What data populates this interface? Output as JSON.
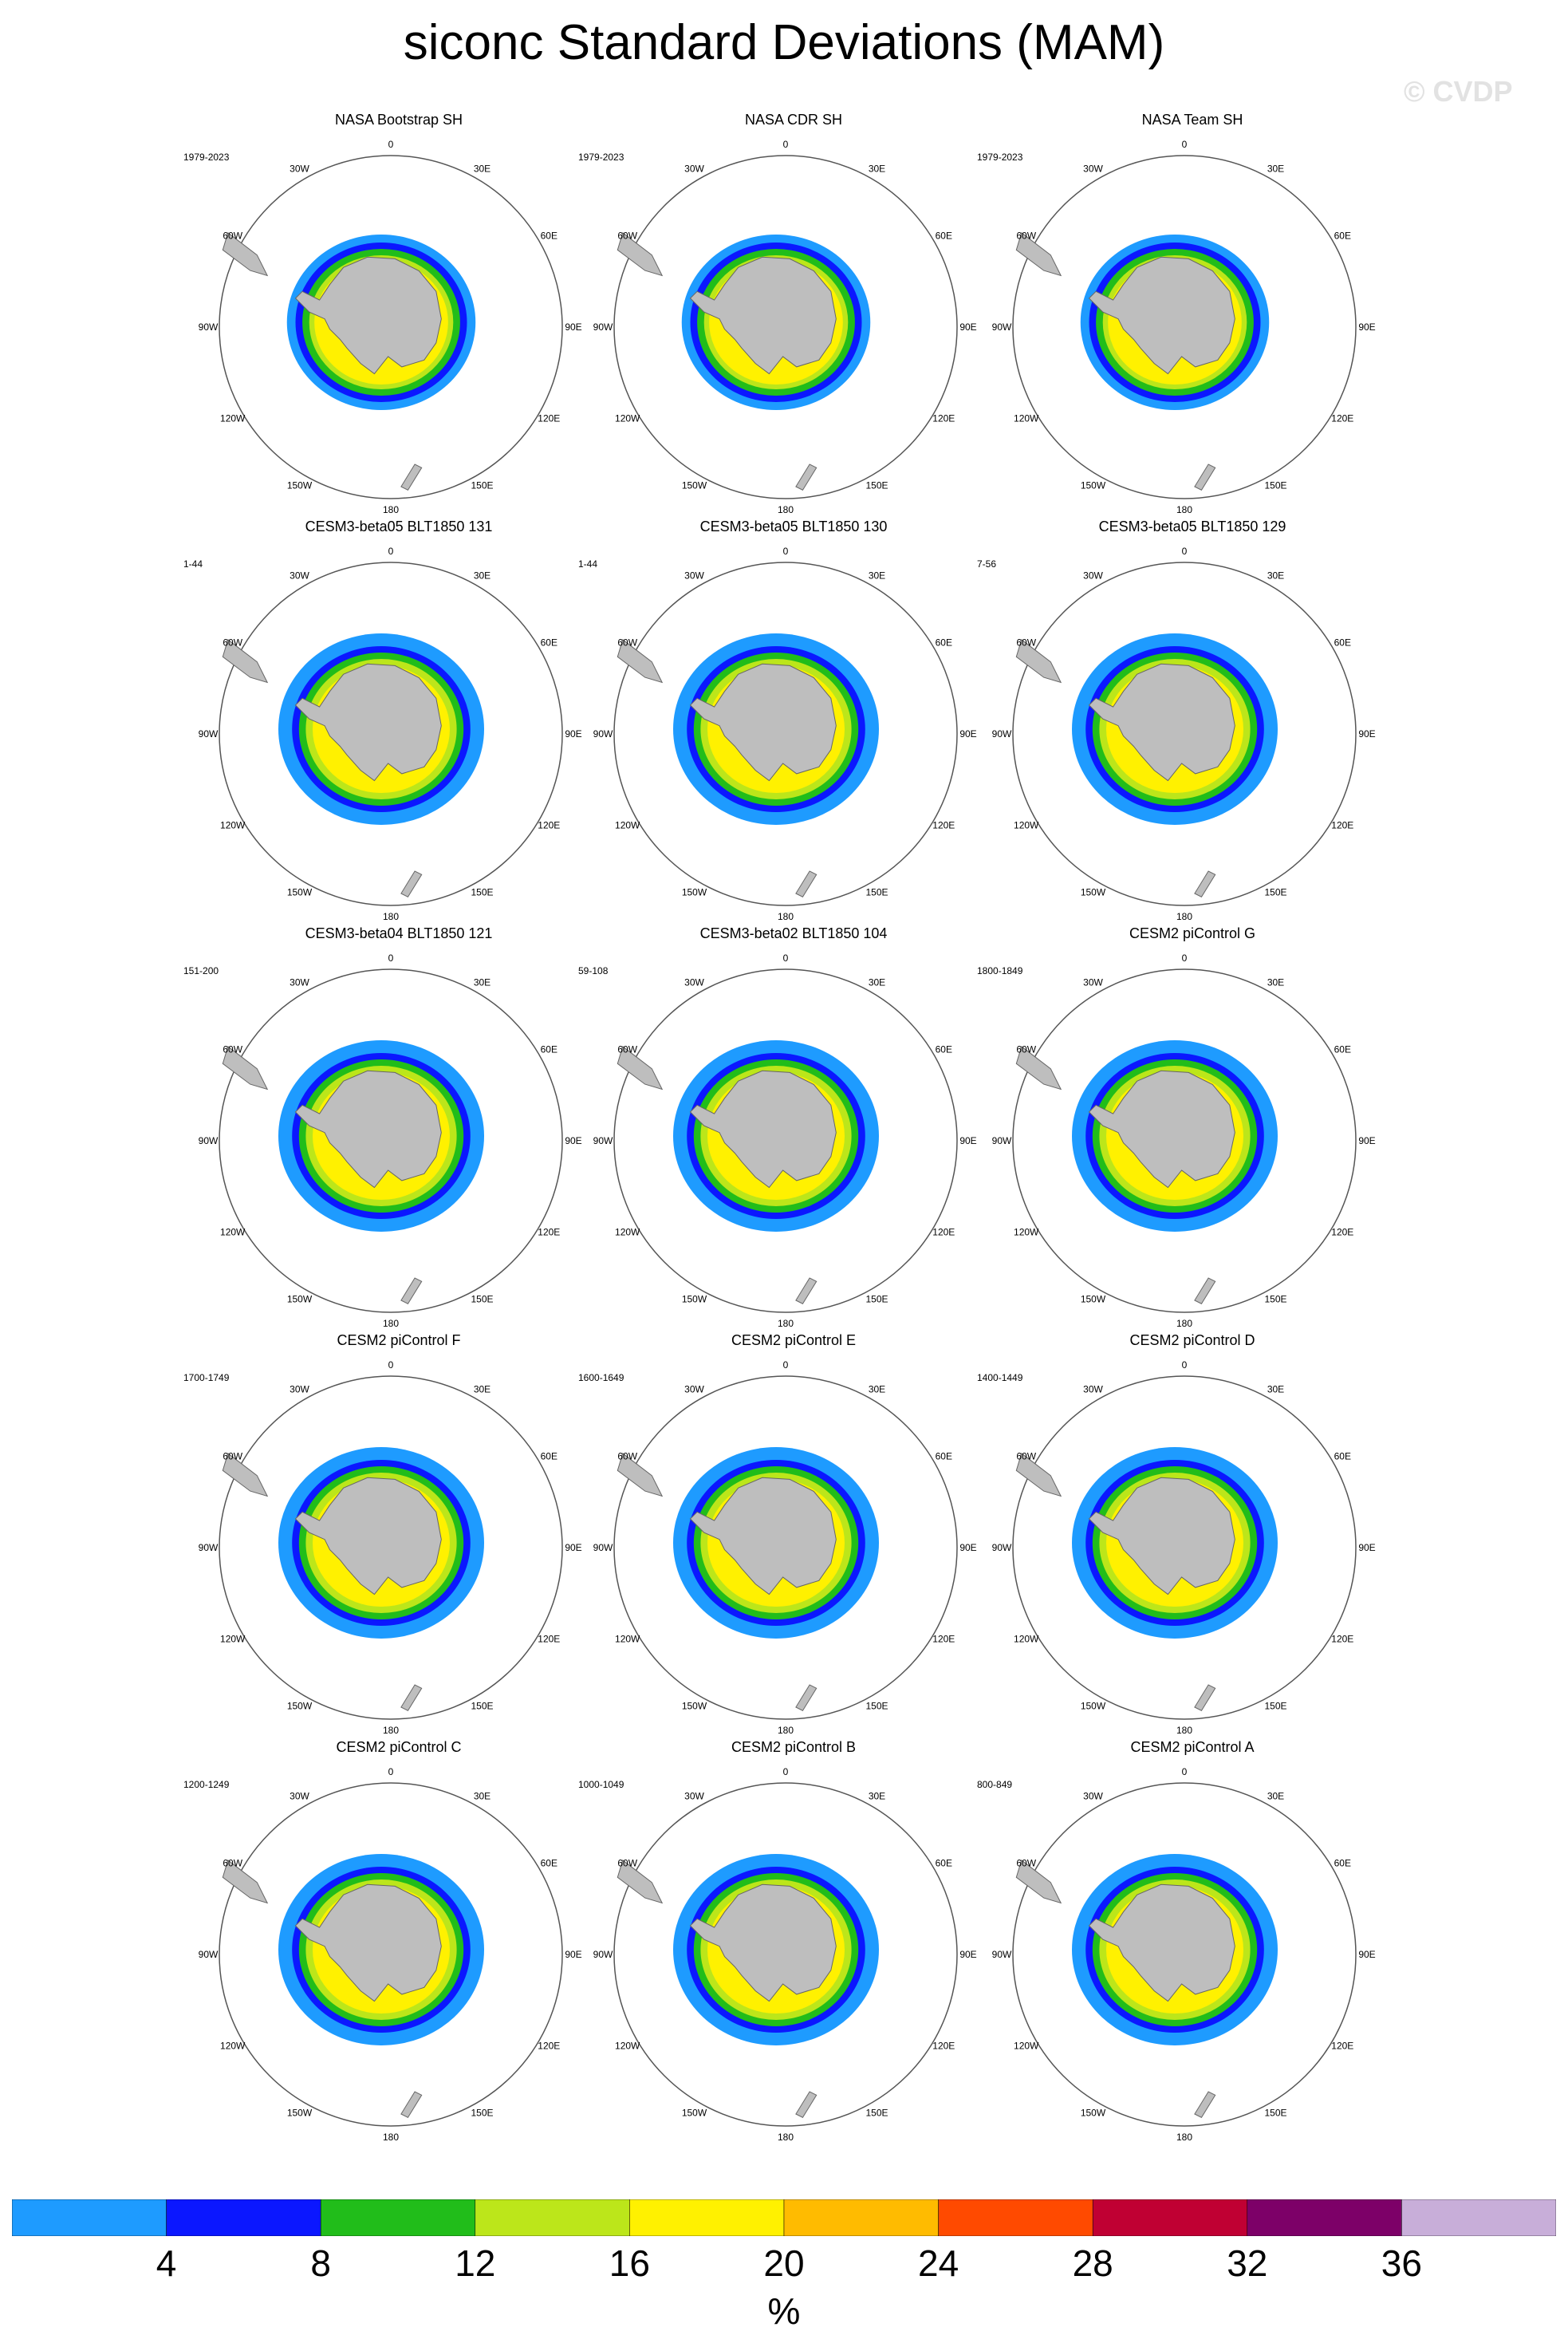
{
  "title": "siconc Standard Deviations (MAM)",
  "watermark": "© CVDP",
  "map": {
    "lon_labels": [
      "0",
      "30E",
      "60E",
      "90E",
      "120E",
      "150E",
      "180",
      "150W",
      "120W",
      "90W",
      "60W",
      "30W"
    ],
    "land_color": "#bebebe",
    "ocean_color": "#ffffff"
  },
  "panels": [
    {
      "title": "NASA Bootstrap SH",
      "years": "1979-2023"
    },
    {
      "title": "NASA CDR SH",
      "years": "1979-2023"
    },
    {
      "title": "NASA Team SH",
      "years": "1979-2023"
    },
    {
      "title": "CESM3-beta05 BLT1850 131",
      "years": "1-44"
    },
    {
      "title": "CESM3-beta05 BLT1850 130",
      "years": "1-44"
    },
    {
      "title": "CESM3-beta05 BLT1850 129",
      "years": "7-56"
    },
    {
      "title": "CESM3-beta04 BLT1850 121",
      "years": "151-200"
    },
    {
      "title": "CESM3-beta02 BLT1850 104",
      "years": "59-108"
    },
    {
      "title": "CESM2 piControl G",
      "years": "1800-1849"
    },
    {
      "title": "CESM2 piControl F",
      "years": "1700-1749"
    },
    {
      "title": "CESM2 piControl E",
      "years": "1600-1649"
    },
    {
      "title": "CESM2 piControl D",
      "years": "1400-1449"
    },
    {
      "title": "CESM2 piControl C",
      "years": "1200-1249"
    },
    {
      "title": "CESM2 piControl B",
      "years": "1000-1049"
    },
    {
      "title": "CESM2 piControl A",
      "years": "800-849"
    }
  ],
  "colorbar": {
    "units": "%",
    "colors": [
      "#1e9bff",
      "#0b17ff",
      "#21bd1a",
      "#bce61a",
      "#fff100",
      "#ffbb00",
      "#ff4a00",
      "#c00033",
      "#7d0068",
      "#c8aed9"
    ],
    "labels": [
      "4",
      "8",
      "12",
      "16",
      "20",
      "24",
      "28",
      "32",
      "36"
    ]
  }
}
